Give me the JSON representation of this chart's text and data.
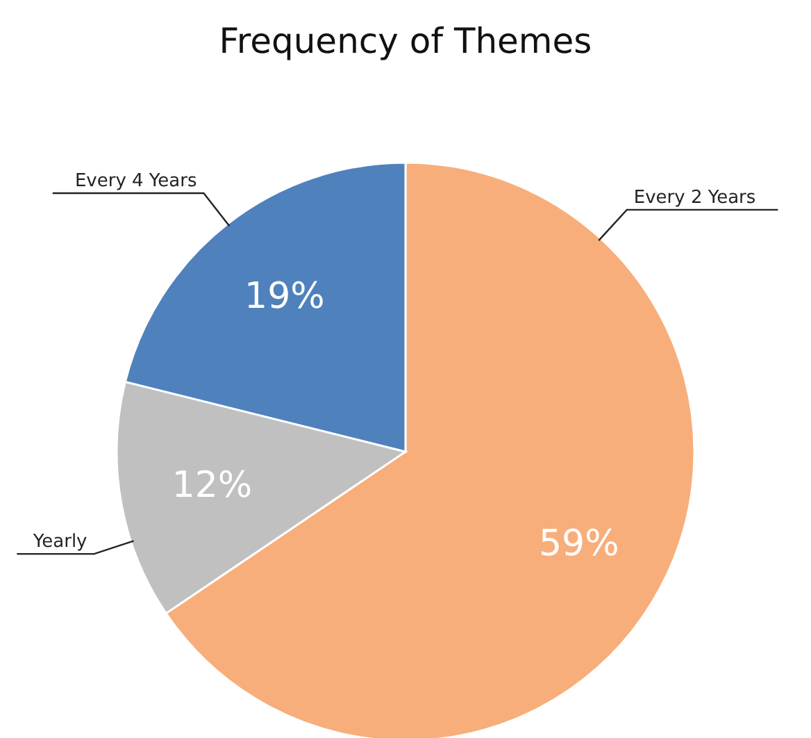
{
  "chart_data": {
    "type": "pie",
    "title": "Frequency of Themes",
    "categories": [
      "Every 2 Years",
      "Yearly",
      "Every 4 Years"
    ],
    "values": [
      59,
      12,
      19
    ],
    "colors": [
      "#f7ae7a",
      "#c0c0c0",
      "#4f81bd"
    ],
    "value_labels": [
      "59%",
      "12%",
      "19%"
    ]
  }
}
